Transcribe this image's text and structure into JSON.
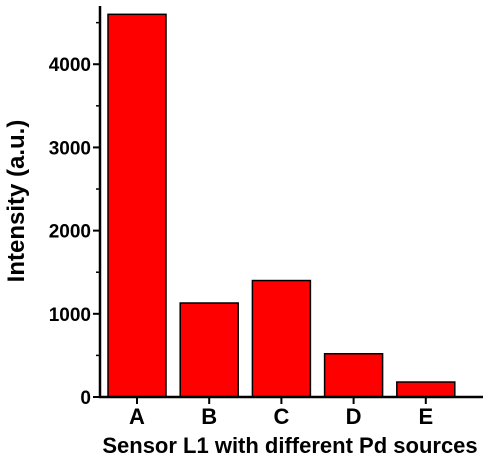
{
  "chart_data": {
    "type": "bar",
    "xlabel": "Sensor L1 with different Pd sources",
    "ylabel": "Intensity (a.u.)",
    "categories": [
      "A",
      "B",
      "C",
      "D",
      "E"
    ],
    "values": [
      4600,
      1130,
      1400,
      520,
      180
    ],
    "ylim": [
      0,
      4700
    ],
    "yticks": [
      0,
      1000,
      2000,
      3000,
      4000
    ],
    "bar_color": "#ff0000",
    "grid": false,
    "legend": "none"
  }
}
